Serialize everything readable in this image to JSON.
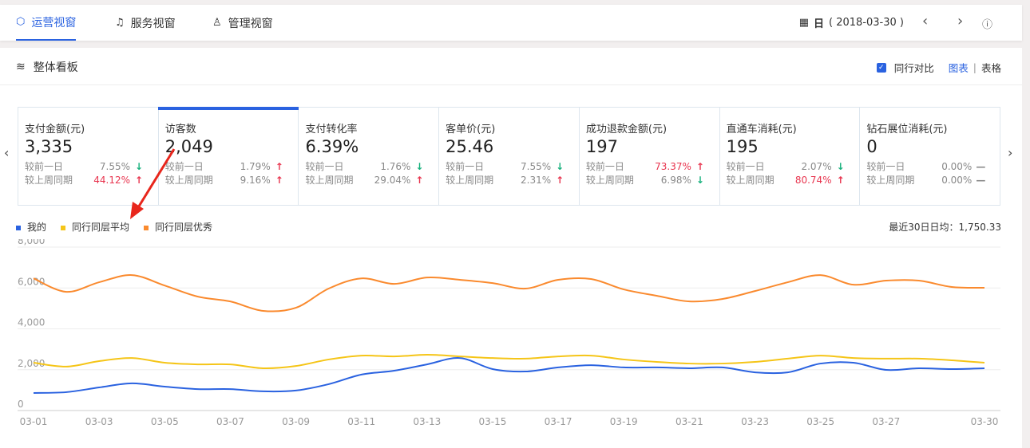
{
  "tabs": [
    {
      "label": "运营视窗",
      "icon": "shield-icon",
      "active": true
    },
    {
      "label": "服务视窗",
      "icon": "headset-icon"
    },
    {
      "label": "管理视窗",
      "icon": "person-icon"
    }
  ],
  "date": {
    "unit": "日",
    "value": "( 2018-03-30 )"
  },
  "panel": {
    "title": "整体看板",
    "compare_label": "同行对比",
    "compare_checked": true,
    "view_chart": "图表",
    "separator": "|",
    "view_table": "表格"
  },
  "cards": [
    {
      "label": "支付金额(元)",
      "value": "3,335",
      "rows": [
        {
          "label": "较前一日",
          "pct": "7.55%",
          "dir": "down"
        },
        {
          "label": "较上周同期",
          "pct": "44.12%",
          "dir": "up",
          "highlight": true
        }
      ]
    },
    {
      "label": "访客数",
      "value": "2,049",
      "active": true,
      "rows": [
        {
          "label": "较前一日",
          "pct": "1.79%",
          "dir": "up"
        },
        {
          "label": "较上周同期",
          "pct": "9.16%",
          "dir": "up"
        }
      ]
    },
    {
      "label": "支付转化率",
      "value": "6.39%",
      "rows": [
        {
          "label": "较前一日",
          "pct": "1.76%",
          "dir": "down"
        },
        {
          "label": "较上周同期",
          "pct": "29.04%",
          "dir": "up"
        }
      ]
    },
    {
      "label": "客单价(元)",
      "value": "25.46",
      "rows": [
        {
          "label": "较前一日",
          "pct": "7.55%",
          "dir": "down"
        },
        {
          "label": "较上周同期",
          "pct": "2.31%",
          "dir": "up"
        }
      ]
    },
    {
      "label": "成功退款金额(元)",
      "value": "197",
      "rows": [
        {
          "label": "较前一日",
          "pct": "73.37%",
          "dir": "up",
          "highlight": true
        },
        {
          "label": "较上周同期",
          "pct": "6.98%",
          "dir": "down"
        }
      ]
    },
    {
      "label": "直通车消耗(元)",
      "value": "195",
      "rows": [
        {
          "label": "较前一日",
          "pct": "2.07%",
          "dir": "down"
        },
        {
          "label": "较上周同期",
          "pct": "80.74%",
          "dir": "up",
          "highlight": true
        }
      ]
    },
    {
      "label": "钻石展位消耗(元)",
      "value": "0",
      "rows": [
        {
          "label": "较前一日",
          "pct": "0.00%",
          "dir": "flat"
        },
        {
          "label": "较上周同期",
          "pct": "0.00%",
          "dir": "flat"
        }
      ]
    }
  ],
  "avg_label": "最近30日日均：1,750.33",
  "chart_data": {
    "type": "line",
    "x": [
      "03-01",
      "03-02",
      "03-03",
      "03-04",
      "03-05",
      "03-06",
      "03-07",
      "03-08",
      "03-09",
      "03-10",
      "03-11",
      "03-12",
      "03-13",
      "03-14",
      "03-15",
      "03-16",
      "03-17",
      "03-18",
      "03-19",
      "03-20",
      "03-21",
      "03-22",
      "03-23",
      "03-24",
      "03-25",
      "03-26",
      "03-27",
      "03-28",
      "03-29",
      "03-30"
    ],
    "xticks": [
      "03-01",
      "03-03",
      "03-05",
      "03-07",
      "03-09",
      "03-11",
      "03-13",
      "03-15",
      "03-17",
      "03-19",
      "03-21",
      "03-23",
      "03-25",
      "03-27",
      "03-30"
    ],
    "yticks": [
      "0",
      "2,000",
      "4,000",
      "6,000",
      "8,000"
    ],
    "ylim": [
      0,
      8000
    ],
    "grid": true,
    "legend": "top-left",
    "series": [
      {
        "name": "我的",
        "color": "#2a62e0",
        "values": [
          860,
          900,
          1130,
          1330,
          1170,
          1050,
          1050,
          940,
          980,
          1290,
          1760,
          1950,
          2260,
          2570,
          2030,
          1910,
          2110,
          2220,
          2110,
          2110,
          2070,
          2110,
          1870,
          1870,
          2300,
          2340,
          1990,
          2070,
          2030,
          2070
        ]
      },
      {
        "name": "同行同层平均",
        "color": "#f5c518",
        "values": [
          2340,
          2150,
          2420,
          2570,
          2340,
          2260,
          2260,
          2070,
          2180,
          2500,
          2690,
          2650,
          2730,
          2650,
          2570,
          2540,
          2650,
          2690,
          2500,
          2380,
          2300,
          2300,
          2380,
          2540,
          2690,
          2570,
          2540,
          2540,
          2460,
          2340
        ]
      },
      {
        "name": "同行同层优秀",
        "color": "#fa8a2e",
        "values": [
          6470,
          5810,
          6280,
          6630,
          6120,
          5580,
          5340,
          4880,
          5030,
          5970,
          6470,
          6200,
          6510,
          6400,
          6240,
          5970,
          6400,
          6440,
          5930,
          5620,
          5340,
          5460,
          5850,
          6280,
          6630,
          6160,
          6360,
          6360,
          6050,
          6010
        ]
      }
    ]
  }
}
